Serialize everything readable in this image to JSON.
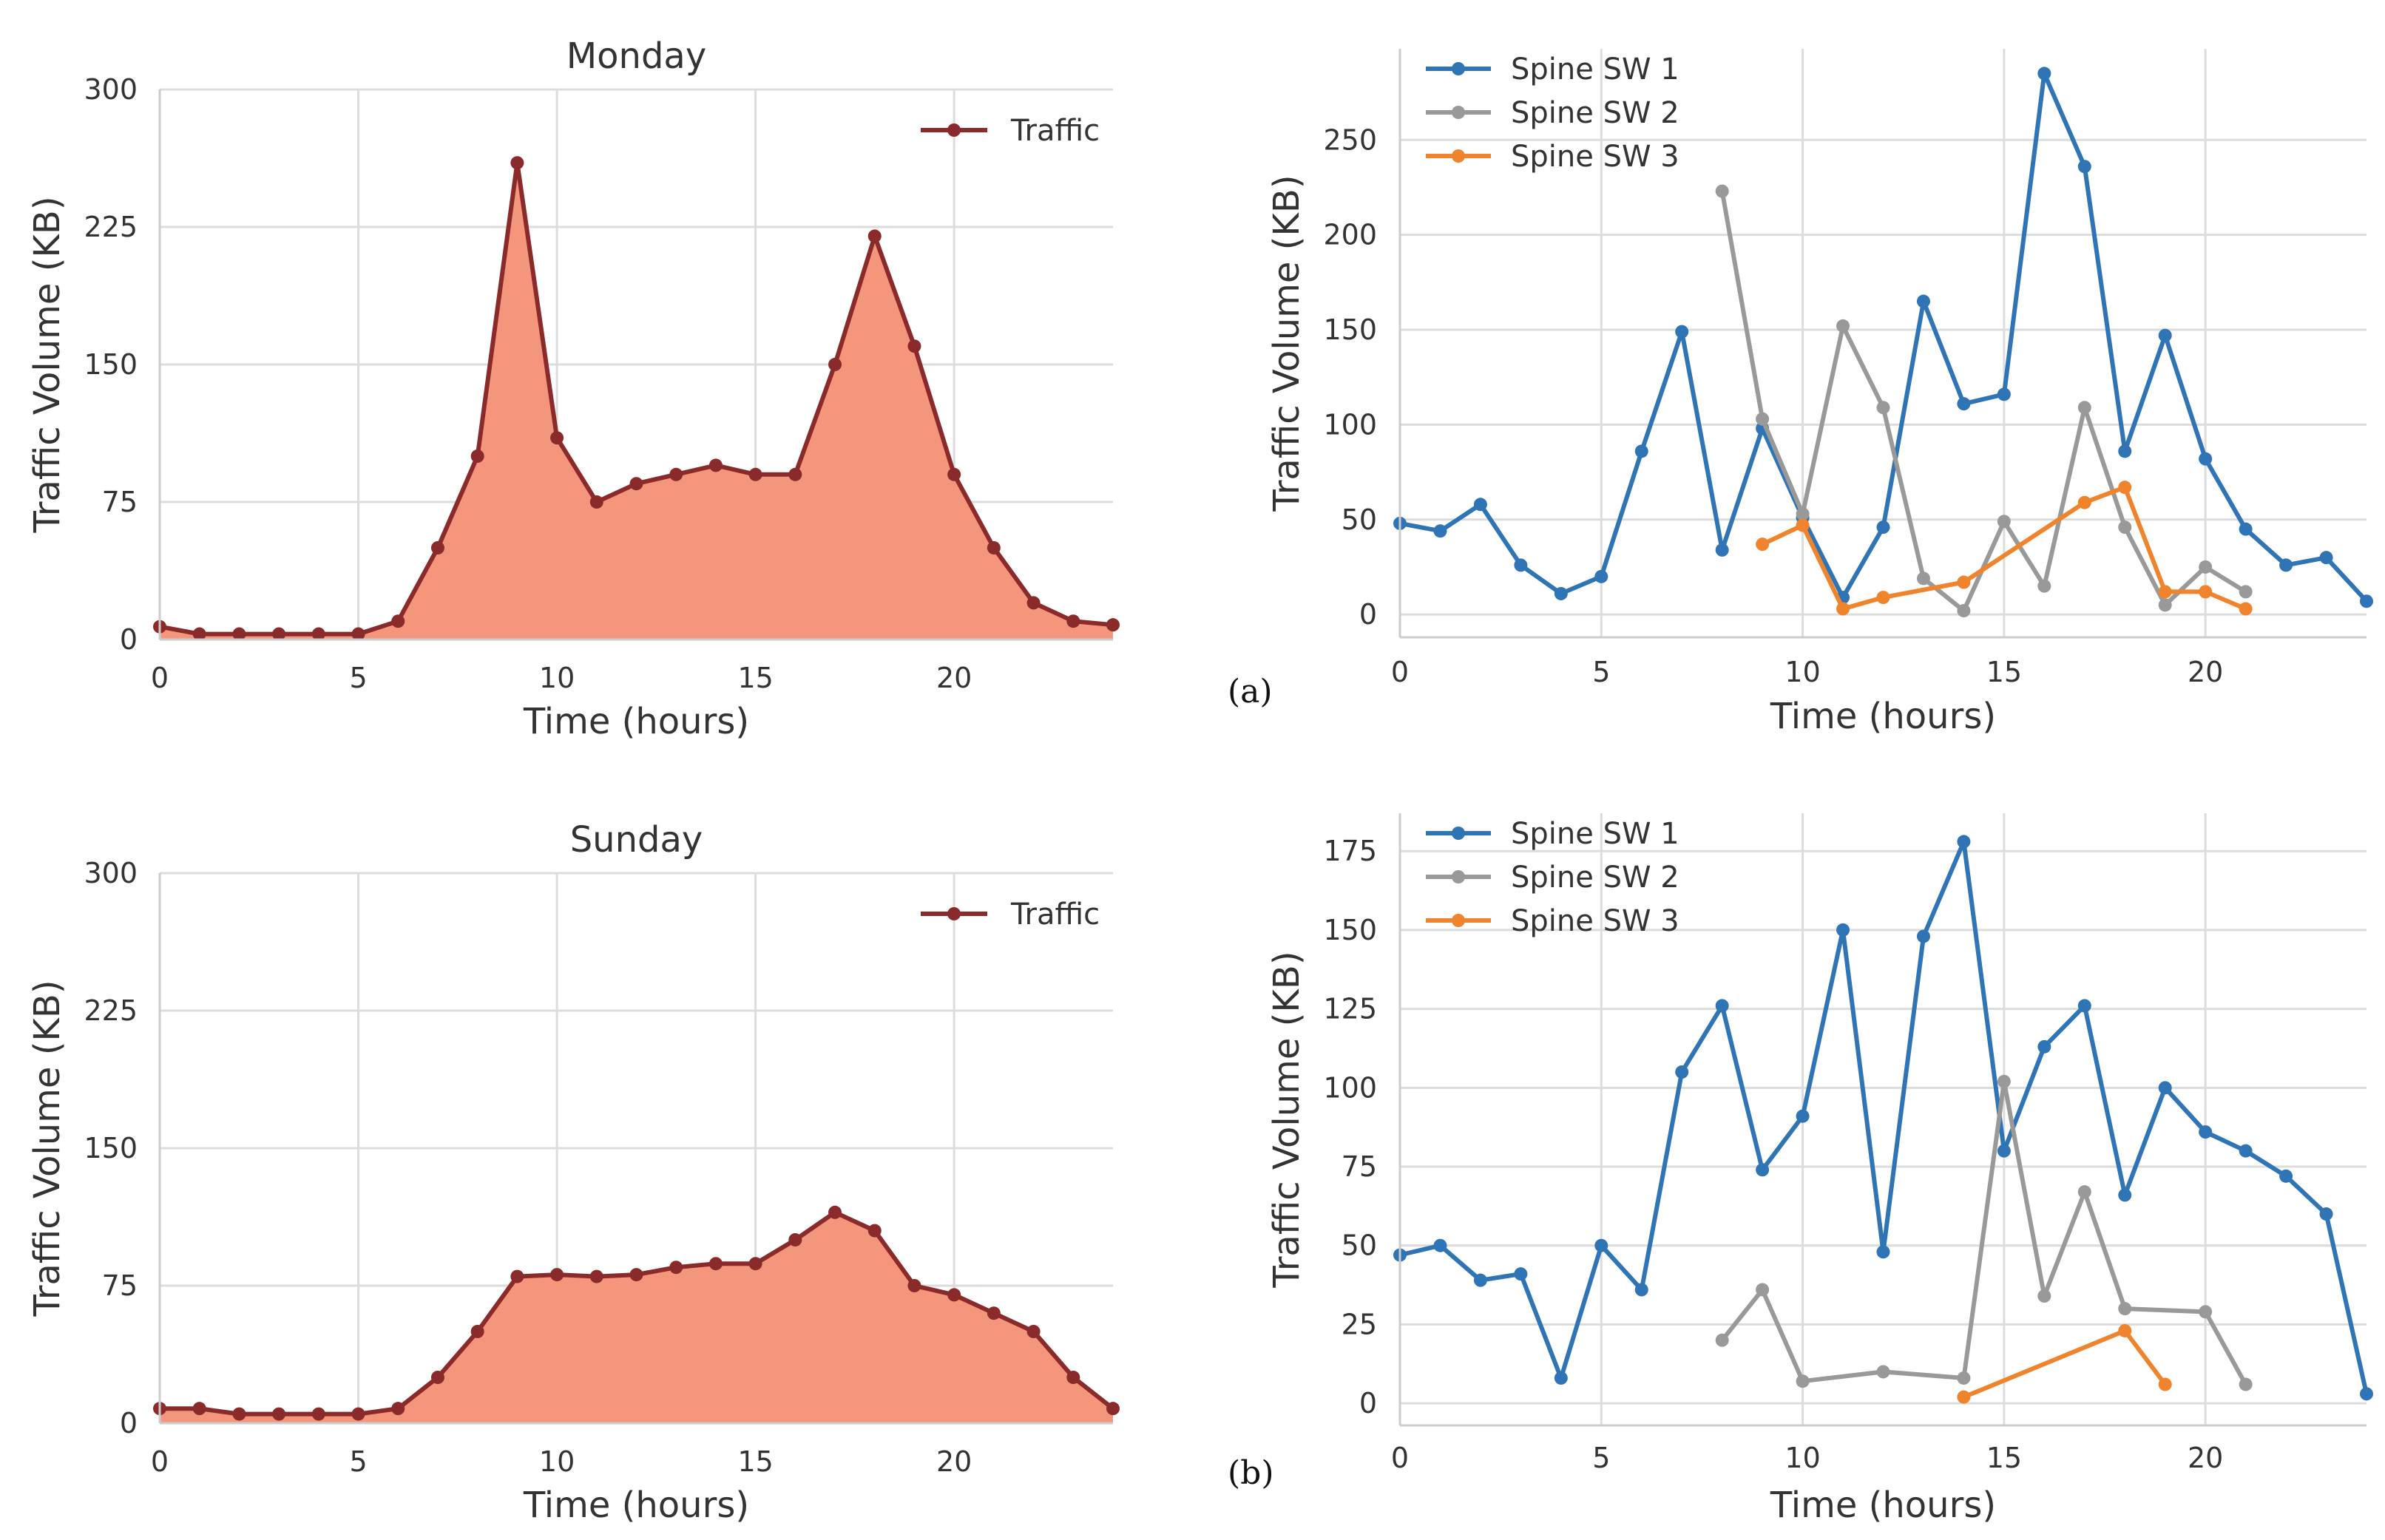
{
  "chart_data": [
    {
      "type": "area",
      "title": "Monday",
      "xlabel": "Time (hours)",
      "ylabel": "Traffic Volume (KB)",
      "xlim": [
        0,
        24
      ],
      "ylim": [
        0,
        300
      ],
      "xticks": [
        0,
        5,
        10,
        15,
        20
      ],
      "yticks": [
        0,
        75,
        150,
        225,
        300
      ],
      "xtick_labels": [
        "0",
        "5",
        "10",
        "15",
        "20"
      ],
      "ytick_labels": [
        "0",
        "75",
        "150",
        "225",
        "300"
      ],
      "grid": true,
      "legend_position": "top-right",
      "series": [
        {
          "name": "Traffic",
          "color": "#8b2a2a",
          "fill": "#f4967c",
          "x": [
            0,
            1,
            2,
            3,
            4,
            5,
            6,
            7,
            8,
            9,
            10,
            11,
            12,
            13,
            14,
            15,
            16,
            17,
            18,
            19,
            20,
            21,
            22,
            23,
            24
          ],
          "values": [
            7,
            3,
            3,
            3,
            3,
            3,
            10,
            50,
            100,
            260,
            110,
            75,
            85,
            90,
            95,
            90,
            90,
            150,
            220,
            160,
            90,
            50,
            20,
            10,
            8
          ]
        }
      ]
    },
    {
      "type": "line",
      "title": "",
      "panel_label": "(a)",
      "xlabel": "Time (hours)",
      "ylabel": "Traffic Volume (KB)",
      "xlim": [
        0,
        24
      ],
      "ylim": [
        -12,
        298
      ],
      "xticks": [
        0,
        5,
        10,
        15,
        20
      ],
      "yticks": [
        0,
        50,
        100,
        150,
        200,
        250
      ],
      "xtick_labels": [
        "0",
        "5",
        "10",
        "15",
        "20"
      ],
      "ytick_labels": [
        "0",
        "50",
        "100",
        "150",
        "200",
        "250"
      ],
      "grid": true,
      "legend_position": "top-left",
      "series": [
        {
          "name": "Spine SW 1",
          "color": "#2f74b5",
          "x": [
            0,
            1,
            2,
            3,
            4,
            5,
            6,
            7,
            8,
            9,
            10,
            11,
            12,
            13,
            14,
            15,
            16,
            17,
            18,
            19,
            20,
            21,
            22,
            23,
            24
          ],
          "values": [
            48,
            44,
            58,
            26,
            11,
            20,
            86,
            149,
            34,
            98,
            51,
            9,
            46,
            165,
            111,
            116,
            285,
            236,
            86,
            147,
            82,
            45,
            26,
            30,
            7
          ]
        },
        {
          "name": "Spine SW 2",
          "color": "#999999",
          "x": [
            8,
            9,
            10,
            11,
            12,
            13,
            14,
            15,
            16,
            17,
            18,
            19,
            20,
            21
          ],
          "values": [
            223,
            103,
            53,
            152,
            109,
            19,
            2,
            49,
            15,
            109,
            46,
            5,
            25,
            12
          ]
        },
        {
          "name": "Spine SW 3",
          "color": "#f0842c",
          "x": [
            9,
            10,
            11,
            12,
            14,
            17,
            18,
            19,
            20,
            21
          ],
          "values": [
            37,
            47,
            3,
            9,
            17,
            59,
            67,
            12,
            12,
            3
          ]
        }
      ]
    },
    {
      "type": "area",
      "title": "Sunday",
      "xlabel": "Time (hours)",
      "ylabel": "Traffic Volume (KB)",
      "xlim": [
        0,
        24
      ],
      "ylim": [
        0,
        300
      ],
      "xticks": [
        0,
        5,
        10,
        15,
        20
      ],
      "yticks": [
        0,
        75,
        150,
        225,
        300
      ],
      "xtick_labels": [
        "0",
        "5",
        "10",
        "15",
        "20"
      ],
      "ytick_labels": [
        "0",
        "75",
        "150",
        "225",
        "300"
      ],
      "grid": true,
      "legend_position": "top-right",
      "series": [
        {
          "name": "Traffic",
          "color": "#8b2a2a",
          "fill": "#f4967c",
          "x": [
            0,
            1,
            2,
            3,
            4,
            5,
            6,
            7,
            8,
            9,
            10,
            11,
            12,
            13,
            14,
            15,
            16,
            17,
            18,
            19,
            20,
            21,
            22,
            23,
            24
          ],
          "values": [
            8,
            8,
            5,
            5,
            5,
            5,
            8,
            25,
            50,
            80,
            81,
            80,
            81,
            85,
            87,
            87,
            100,
            115,
            105,
            75,
            70,
            60,
            50,
            25,
            8
          ]
        }
      ]
    },
    {
      "type": "line",
      "title": "",
      "panel_label": "(b)",
      "xlabel": "Time (hours)",
      "ylabel": "Traffic Volume (KB)",
      "xlim": [
        0,
        24
      ],
      "ylim": [
        -7,
        187
      ],
      "xticks": [
        0,
        5,
        10,
        15,
        20
      ],
      "yticks": [
        0,
        25,
        50,
        75,
        100,
        125,
        150,
        175
      ],
      "xtick_labels": [
        "0",
        "5",
        "10",
        "15",
        "20"
      ],
      "ytick_labels": [
        "0",
        "25",
        "50",
        "75",
        "100",
        "125",
        "150",
        "175"
      ],
      "grid": true,
      "legend_position": "top-left",
      "series": [
        {
          "name": "Spine SW 1",
          "color": "#2f74b5",
          "x": [
            0,
            1,
            2,
            3,
            4,
            5,
            6,
            7,
            8,
            9,
            10,
            11,
            12,
            13,
            14,
            15,
            16,
            17,
            18,
            19,
            20,
            21,
            22,
            23,
            24
          ],
          "values": [
            47,
            50,
            39,
            41,
            8,
            50,
            36,
            105,
            126,
            74,
            91,
            150,
            48,
            148,
            178,
            80,
            113,
            126,
            66,
            100,
            86,
            80,
            72,
            60,
            3
          ]
        },
        {
          "name": "Spine SW 2",
          "color": "#999999",
          "x": [
            8,
            9,
            10,
            12,
            14,
            15,
            16,
            17,
            18,
            20,
            21
          ],
          "values": [
            20,
            36,
            7,
            10,
            8,
            102,
            34,
            67,
            30,
            29,
            6
          ]
        },
        {
          "name": "Spine SW 3",
          "color": "#f0842c",
          "x": [
            14,
            18,
            19
          ],
          "values": [
            2,
            23,
            6
          ]
        }
      ]
    }
  ]
}
